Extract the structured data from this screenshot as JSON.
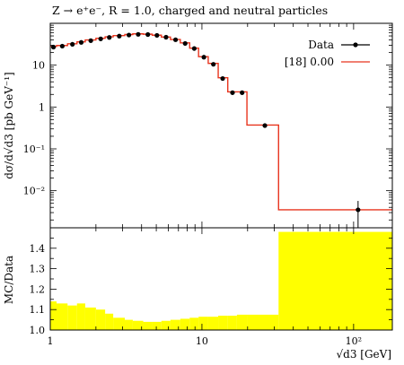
{
  "chart_data": [
    {
      "type": "line",
      "title": "Z → e⁺e⁻, R = 1.0, charged and neutral particles",
      "ylabel": "dσ/d√d3 [pb GeV⁻¹]",
      "xlabel": "√d3 [GeV]",
      "xscale": "log",
      "yscale": "log",
      "xlim": [
        1,
        180
      ],
      "ylim": [
        0.0013,
        100
      ],
      "ytick_labels": [
        "10",
        "1",
        "10⁻¹",
        "10⁻²"
      ],
      "ytick_values": [
        10,
        1,
        0.1,
        0.01
      ],
      "legend_position": "top-right",
      "series": [
        {
          "name": "Data",
          "marker": "circle",
          "color": "#000000",
          "x": [
            1.05,
            1.2,
            1.4,
            1.6,
            1.85,
            2.15,
            2.45,
            2.85,
            3.3,
            3.8,
            4.4,
            5.05,
            5.8,
            6.7,
            7.75,
            8.9,
            10.3,
            11.9,
            13.7,
            15.9,
            18.4,
            26.0,
            107.0
          ],
          "y": [
            27.0,
            28.5,
            31.5,
            35.0,
            38.5,
            42.5,
            46.0,
            49.5,
            52.5,
            54.5,
            54.0,
            51.5,
            46.5,
            40.5,
            33.0,
            25.0,
            15.5,
            10.5,
            4.8,
            2.2,
            2.2,
            0.36,
            0.0035
          ],
          "yerr": [
            0,
            0,
            0,
            0,
            0,
            0,
            0,
            0,
            0,
            0,
            0,
            0,
            0,
            0,
            0,
            0,
            0,
            0,
            0,
            0,
            0,
            0,
            0.0022
          ]
        },
        {
          "name": "[18] 0.00",
          "color": "#e8351e",
          "step": true,
          "edges": [
            1.0,
            1.1,
            1.3,
            1.5,
            1.7,
            2.0,
            2.3,
            2.6,
            3.1,
            3.5,
            4.1,
            4.7,
            5.4,
            6.2,
            7.2,
            8.3,
            9.5,
            11.0,
            12.8,
            14.8,
            17.0,
            19.8,
            32.0,
            180.0
          ],
          "values": [
            28.0,
            29.5,
            32.5,
            36.0,
            40.0,
            44.0,
            47.5,
            51.0,
            54.0,
            56.0,
            55.0,
            52.0,
            47.0,
            41.0,
            34.0,
            25.5,
            16.0,
            11.0,
            5.0,
            2.3,
            2.3,
            0.37,
            0.0035
          ]
        }
      ]
    },
    {
      "type": "area",
      "ylabel": "MC/Data",
      "xlabel": "√d3 [GeV]",
      "xscale": "log",
      "xlim": [
        1,
        180
      ],
      "ylim": [
        1.0,
        1.5
      ],
      "ytick_labels": [
        "1.0",
        "1.1",
        "1.2",
        "1.3",
        "1.4"
      ],
      "ytick_values": [
        1.0,
        1.1,
        1.2,
        1.3,
        1.4
      ],
      "xtick_labels": [
        "1",
        "10",
        "10²"
      ],
      "xtick_values": [
        1,
        10,
        100
      ],
      "band_color": "#ffff00",
      "edges": [
        1.0,
        1.1,
        1.3,
        1.5,
        1.7,
        2.0,
        2.3,
        2.6,
        3.1,
        3.5,
        4.1,
        4.7,
        5.4,
        6.2,
        7.2,
        8.3,
        9.5,
        11.0,
        12.8,
        14.8,
        17.0,
        19.8,
        32.0,
        180.0
      ],
      "upper": [
        1.14,
        1.13,
        1.12,
        1.13,
        1.11,
        1.1,
        1.08,
        1.06,
        1.05,
        1.045,
        1.04,
        1.04,
        1.045,
        1.05,
        1.055,
        1.06,
        1.065,
        1.065,
        1.07,
        1.07,
        1.075,
        1.075,
        1.48
      ]
    }
  ]
}
